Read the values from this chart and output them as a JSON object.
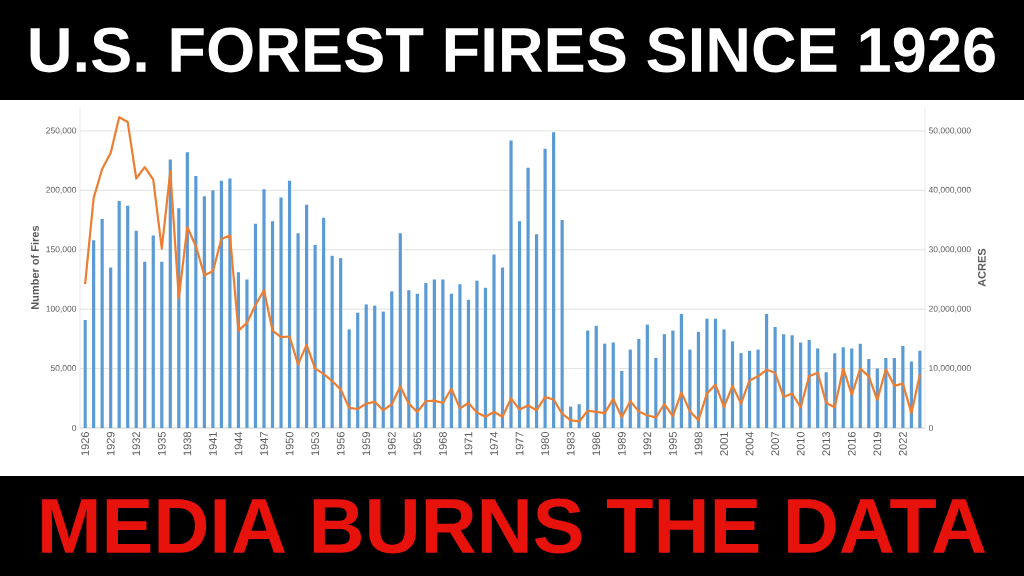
{
  "chart_data": {
    "type": "bar",
    "title": "U.S. FOREST FIRES SINCE 1926",
    "annotations": [
      "MEDIA BURNS THE DATA"
    ],
    "ylabel": "Number of Fires",
    "y2label": "ACRES",
    "categories": [
      "1926",
      null,
      null,
      "1929",
      null,
      null,
      "1932",
      null,
      null,
      "1935",
      null,
      null,
      "1938",
      null,
      null,
      "1941",
      null,
      null,
      "1944",
      null,
      null,
      "1947",
      null,
      null,
      "1950",
      null,
      null,
      "1953",
      null,
      null,
      "1956",
      null,
      null,
      "1959",
      null,
      null,
      "1962",
      null,
      null,
      "1965",
      null,
      null,
      "1968",
      null,
      null,
      "1971",
      null,
      null,
      "1974",
      null,
      null,
      "1977",
      null,
      null,
      "1980",
      null,
      null,
      "1983",
      null,
      null,
      "1986",
      null,
      null,
      "1989",
      null,
      null,
      "1992",
      null,
      null,
      "1995",
      null,
      null,
      "1998",
      null,
      null,
      "2001",
      null,
      null,
      "2004",
      null,
      null,
      "2007",
      null,
      null,
      "2010",
      null,
      null,
      "2013",
      null,
      null,
      "2016",
      null,
      null,
      "2019",
      null,
      null,
      "2022",
      null,
      null
    ],
    "series": [
      {
        "color": "#5b9bd5",
        "values": [
          91000,
          158000,
          176000,
          135000,
          191000,
          187000,
          166000,
          140000,
          162000,
          140000,
          226000,
          185000,
          232000,
          212000,
          195000,
          200000,
          208000,
          210000,
          131000,
          125000,
          172000,
          201000,
          174000,
          194000,
          208000,
          164000,
          188000,
          154000,
          177000,
          145000,
          143000,
          83000,
          97000,
          104000,
          103000,
          98000,
          115000,
          164000,
          116000,
          113000,
          122000,
          125000,
          125000,
          113000,
          121000,
          108000,
          124000,
          118000,
          146000,
          135000,
          242000,
          174000,
          219000,
          163000,
          235000,
          249000,
          175000,
          18000,
          20000,
          82000,
          86000,
          71000,
          72000,
          48000,
          66000,
          75000,
          87000,
          59000,
          79000,
          82000,
          96000,
          66000,
          81000,
          92000,
          92000,
          83000,
          73000,
          63000,
          65000,
          66000,
          96000,
          85000,
          79000,
          78000,
          72000,
          74000,
          67000,
          47000,
          63000,
          68000,
          67000,
          71000,
          58000,
          50000,
          59000,
          59000,
          69000,
          56000,
          65000
        ]
      },
      {
        "type": "line",
        "axis": "y2",
        "color": "#ed7d31",
        "values": [
          24200000,
          38700000,
          43600000,
          46300000,
          52300000,
          51500000,
          42000000,
          43900000,
          41800000,
          30200000,
          43200000,
          21900000,
          33800000,
          30600000,
          25700000,
          26400000,
          31800000,
          32400000,
          16400000,
          17700000,
          20700000,
          23200000,
          16400000,
          15300000,
          15400000,
          10700000,
          14000000,
          10000000,
          9100000,
          7900000,
          6500000,
          3400000,
          3200000,
          4100000,
          4400000,
          3000000,
          4000000,
          7000000,
          4100000,
          2700000,
          4500000,
          4600000,
          4200000,
          6600000,
          3300000,
          4200000,
          2600000,
          1900000,
          2700000,
          1900000,
          5000000,
          3100000,
          3800000,
          3000000,
          5200000,
          4800000,
          2400000,
          1300000,
          1100000,
          2900000,
          2700000,
          2500000,
          4900000,
          1800000,
          4500000,
          2800000,
          2100000,
          1800000,
          4000000,
          2000000,
          6000000,
          2800000,
          1300000,
          5800000,
          7300000,
          3500000,
          7100000,
          4100000,
          8000000,
          8700000,
          9800000,
          9300000,
          5200000,
          5800000,
          3500000,
          8700000,
          9300000,
          4200000,
          3500000,
          10000000,
          5600000,
          10000000,
          8700000,
          4700000,
          9900000,
          7100000,
          7500000,
          2500000,
          9000000
        ]
      }
    ],
    "ylim": [
      0,
      270000
    ],
    "yticks": [
      0,
      {
        "value": 50000,
        "label": "50,000"
      },
      {
        "value": 100000,
        "label": "100,000"
      },
      {
        "value": 150000,
        "label": "150,000"
      },
      {
        "value": 200000,
        "label": "200,000"
      },
      {
        "value": 250000,
        "label": "250,000"
      }
    ],
    "y2lim": [
      0,
      54000000
    ],
    "y2ticks": [
      0,
      {
        "value": 10000000,
        "label": "10,000,000"
      },
      {
        "value": 20000000,
        "label": "20,000,000"
      },
      {
        "value": 30000000,
        "label": "30,000,000"
      },
      {
        "value": 40000000,
        "label": "40,000,000"
      },
      {
        "value": 50000000,
        "label": "50,000,000"
      }
    ],
    "grid": "y"
  }
}
